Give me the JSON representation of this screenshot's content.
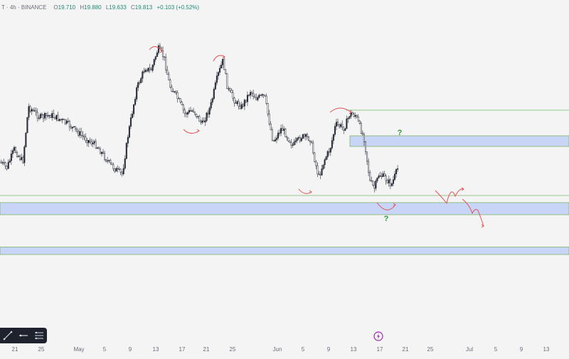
{
  "legend": {
    "symbol": "T · 4h · BINANCE",
    "open_label": "O",
    "open": "19.710",
    "high_label": "H",
    "high": "19.880",
    "low_label": "L",
    "low": "19.633",
    "close_label": "C",
    "close": "19.813",
    "change": "+0.103 (+0.52%)"
  },
  "colors": {
    "background": "#f4f4f4",
    "candle": "#2a2e39",
    "zone_fill": "#c9d5f7",
    "zone_border": "#7bb36a",
    "level_line": "#7bb36a",
    "arrow": "#e05252",
    "question": "#2e9b3a",
    "replay_icon": "#9c27b0",
    "toolbar_bg": "#1e222d"
  },
  "toolbar": {
    "icons": [
      "trend-line-icon",
      "horizontal-ray-icon",
      "multi-line-icon"
    ]
  },
  "chart_data": {
    "type": "candlestick",
    "timeframe": "4h",
    "x_tick_labels": [
      "21",
      "25",
      "May",
      "5",
      "9",
      "13",
      "17",
      "21",
      "25",
      "Jun",
      "5",
      "9",
      "13",
      "17",
      "21",
      "25",
      "Jul",
      "5",
      "9",
      "13"
    ],
    "price_path": [
      [
        0.0,
        228
      ],
      [
        0.012,
        236
      ],
      [
        0.025,
        210
      ],
      [
        0.04,
        228
      ],
      [
        0.05,
        150
      ],
      [
        0.07,
        165
      ],
      [
        0.09,
        162
      ],
      [
        0.105,
        168
      ],
      [
        0.12,
        175
      ],
      [
        0.135,
        185
      ],
      [
        0.15,
        195
      ],
      [
        0.17,
        205
      ],
      [
        0.19,
        228
      ],
      [
        0.205,
        240
      ],
      [
        0.215,
        245
      ],
      [
        0.225,
        190
      ],
      [
        0.24,
        125
      ],
      [
        0.255,
        95
      ],
      [
        0.265,
        100
      ],
      [
        0.278,
        68
      ],
      [
        0.288,
        80
      ],
      [
        0.298,
        120
      ],
      [
        0.31,
        135
      ],
      [
        0.325,
        160
      ],
      [
        0.34,
        155
      ],
      [
        0.355,
        175
      ],
      [
        0.37,
        150
      ],
      [
        0.382,
        108
      ],
      [
        0.392,
        85
      ],
      [
        0.4,
        125
      ],
      [
        0.415,
        145
      ],
      [
        0.425,
        150
      ],
      [
        0.44,
        128
      ],
      [
        0.45,
        138
      ],
      [
        0.465,
        135
      ],
      [
        0.48,
        200
      ],
      [
        0.495,
        180
      ],
      [
        0.515,
        205
      ],
      [
        0.53,
        192
      ],
      [
        0.545,
        195
      ],
      [
        0.56,
        250
      ],
      [
        0.57,
        225
      ],
      [
        0.58,
        210
      ],
      [
        0.59,
        175
      ],
      [
        0.605,
        180
      ],
      [
        0.615,
        160
      ],
      [
        0.625,
        162
      ],
      [
        0.64,
        195
      ],
      [
        0.65,
        255
      ],
      [
        0.658,
        265
      ],
      [
        0.666,
        245
      ],
      [
        0.676,
        250
      ],
      [
        0.688,
        260
      ],
      [
        0.7,
        235
      ]
    ],
    "horizontal_levels": [
      {
        "name": "upper-level",
        "y_frac": 0.31
      },
      {
        "name": "lower-level",
        "y_frac": 0.55
      }
    ],
    "zones": [
      {
        "name": "upper-zone",
        "top_frac": 0.382,
        "bottom_frac": 0.412
      },
      {
        "name": "middle-zone",
        "top_frac": 0.57,
        "bottom_frac": 0.604
      },
      {
        "name": "lower-zone",
        "top_frac": 0.695,
        "bottom_frac": 0.716
      }
    ],
    "annotations": [
      "?",
      "?"
    ]
  }
}
